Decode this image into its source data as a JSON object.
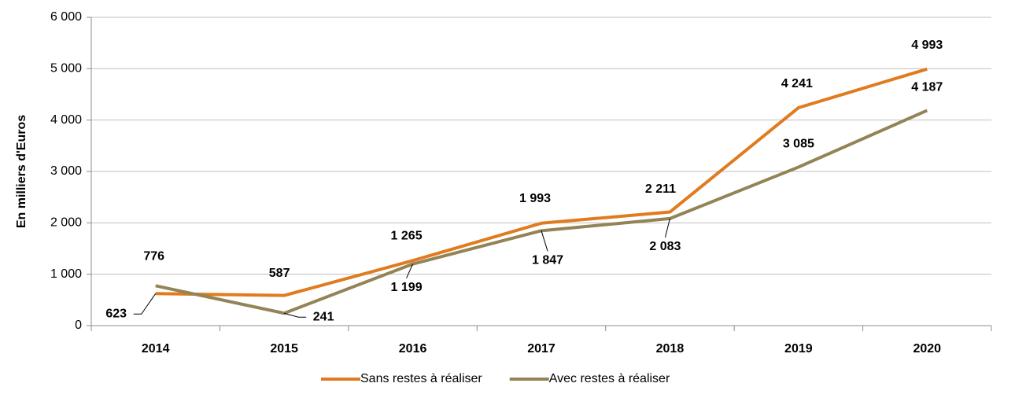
{
  "chart_data": {
    "type": "line",
    "y_label": "En milliers d'Euros",
    "categories": [
      "2014",
      "2015",
      "2016",
      "2017",
      "2018",
      "2019",
      "2020"
    ],
    "series": [
      {
        "name": "Sans restes à réaliser",
        "color": "#e07b1f",
        "values": [
          623,
          587,
          1265,
          1993,
          2211,
          4241,
          4993
        ],
        "value_labels": [
          "623",
          "587",
          "1 265",
          "1 993",
          "2 211",
          "4 241",
          "4 993"
        ]
      },
      {
        "name": "Avec restes à réaliser",
        "color": "#938457",
        "values": [
          776,
          241,
          1199,
          1847,
          2083,
          3085,
          4187
        ],
        "value_labels": [
          "776",
          "241",
          "1 199",
          "1 847",
          "2 083",
          "3 085",
          "4 187"
        ]
      }
    ],
    "ylim": [
      0,
      6000
    ],
    "yticks": [
      0,
      {
        "value": 1000,
        "label": "1 000"
      },
      {
        "value": 2000,
        "label": "2 000"
      },
      {
        "value": 3000,
        "label": "3 000"
      },
      {
        "value": 4000,
        "label": "4 000"
      },
      {
        "value": 5000,
        "label": "5 000"
      },
      {
        "value": 6000,
        "label": "6 000"
      }
    ],
    "grid": true,
    "legend": "bottom"
  }
}
